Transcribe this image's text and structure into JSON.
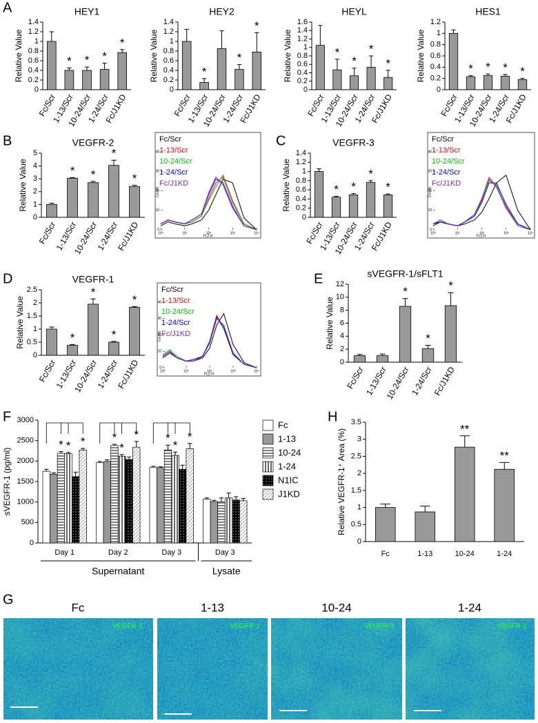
{
  "panel_labels": [
    "A",
    "B",
    "C",
    "D",
    "E",
    "F",
    "G",
    "H"
  ],
  "chart_data": [
    {
      "type": "bar",
      "title": "HEY1",
      "ylabel": "Relative Value",
      "categories": [
        "Fc/Scr",
        "1-13/Scr",
        "10-24/Scr",
        "1-24/Scr",
        "Fc/J1KD"
      ],
      "values": [
        1,
        0.4,
        0.4,
        0.42,
        0.77
      ],
      "errors": [
        0.2,
        0.05,
        0.07,
        0.13,
        0.06
      ],
      "significance": [
        null,
        "*",
        "*",
        "*",
        "*"
      ],
      "color": "#999999",
      "ylim": [
        0,
        1.4
      ],
      "yticks": [
        0,
        0.2,
        0.4,
        0.6,
        0.8,
        1,
        1.2,
        1.4
      ]
    },
    {
      "type": "bar",
      "title": "HEY2",
      "ylabel": "Relative Value",
      "categories": [
        "Fc/Scr",
        "1-13/Scr",
        "10-24/Scr",
        "1-24/Scr",
        "Fc/J1KD"
      ],
      "values": [
        1,
        0.15,
        0.85,
        0.42,
        0.78
      ],
      "errors": [
        0.25,
        0.08,
        0.37,
        0.1,
        0.4
      ],
      "significance": [
        null,
        "*",
        null,
        "*",
        "*"
      ],
      "color": "#999999",
      "ylim": [
        0,
        1.4
      ],
      "yticks": [
        0,
        0.2,
        0.4,
        0.6,
        0.8,
        1,
        1.2,
        1.4
      ]
    },
    {
      "type": "bar",
      "title": "HEYL",
      "ylabel": "Relative Value",
      "categories": [
        "Fc/Scr",
        "1-13/Scr",
        "10-24/Scr",
        "1-24/Scr",
        "Fc/J1KD"
      ],
      "values": [
        1.05,
        0.47,
        0.33,
        0.53,
        0.29
      ],
      "errors": [
        0.47,
        0.25,
        0.18,
        0.27,
        0.17
      ],
      "significance": [
        null,
        "*",
        "*",
        "*",
        "*"
      ],
      "color": "#999999",
      "ylim": [
        0,
        1.6
      ],
      "yticks": [
        0,
        0.2,
        0.4,
        0.6,
        0.8,
        1,
        1.2,
        1.4,
        1.6
      ]
    },
    {
      "type": "bar",
      "title": "HES1",
      "ylabel": "Relative Value",
      "categories": [
        "Fc/Scr",
        "1-13/Scr",
        "10-24/Scr",
        "1-24/Scr",
        "Fc/J1KD"
      ],
      "values": [
        1,
        0.23,
        0.25,
        0.24,
        0.18
      ],
      "errors": [
        0.06,
        0.02,
        0.03,
        0.03,
        0.02
      ],
      "significance": [
        null,
        "*",
        "*",
        "*",
        "*"
      ],
      "color": "#999999",
      "ylim": [
        0,
        1.2
      ],
      "yticks": [
        0,
        0.2,
        0.4,
        0.6,
        0.8,
        1,
        1.2
      ]
    },
    {
      "type": "bar",
      "title": "VEGFR-2",
      "ylabel": "Relative Value",
      "categories": [
        "Fc/Scr",
        "1-13/Scr",
        "10-24/Scr",
        "1-24/Scr",
        "Fc/J1KD"
      ],
      "values": [
        1,
        3.05,
        2.7,
        4.05,
        2.4
      ],
      "errors": [
        0.1,
        0.05,
        0.1,
        0.4,
        0.1
      ],
      "significance": [
        null,
        "*",
        "*",
        "*",
        "*"
      ],
      "color": "#999999",
      "ylim": [
        0,
        5
      ],
      "yticks": [
        0,
        1,
        2,
        3,
        4,
        5
      ]
    },
    {
      "type": "flow-histogram",
      "xlabel": "FL2-H",
      "ylabel": "Counts",
      "log_x": true,
      "xlim": [
        1,
        10000
      ],
      "xticks": [
        {
          "value": 1,
          "label": "10⁰"
        },
        {
          "value": 10,
          "label": "10¹"
        },
        {
          "value": 100,
          "label": "10²"
        },
        {
          "value": 1000,
          "label": "10³"
        },
        {
          "value": 10000,
          "label": "10⁴"
        }
      ],
      "ylim": [
        0,
        40
      ],
      "yticks": [
        0,
        10,
        20,
        30,
        40
      ],
      "x": [
        1,
        2,
        4,
        10,
        20,
        50,
        100,
        200,
        400,
        1000,
        3000,
        10000
      ],
      "series": [
        {
          "name": "Fc/Scr",
          "color": "#000000",
          "values": [
            2,
            4,
            3,
            2,
            3,
            5,
            10,
            18,
            26,
            24,
            6,
            0
          ]
        },
        {
          "name": "1-13/Scr",
          "color": "#ff0000",
          "values": [
            3,
            5,
            4,
            3,
            4,
            7,
            16,
            24,
            27,
            14,
            3,
            0
          ]
        },
        {
          "name": "10-24/Scr",
          "color": "#00c000",
          "values": [
            3,
            5,
            4,
            3,
            4,
            7,
            15,
            22,
            28,
            15,
            3,
            0
          ]
        },
        {
          "name": "1-24/Scr",
          "color": "#0000cc",
          "values": [
            3,
            5,
            4,
            3,
            5,
            8,
            18,
            26,
            24,
            12,
            2,
            0
          ]
        },
        {
          "name": "Fc/J1KD",
          "color": "#7a2ccc",
          "values": [
            3,
            5,
            4,
            3,
            5,
            8,
            19,
            27,
            23,
            11,
            2,
            0
          ]
        }
      ]
    },
    {
      "type": "bar",
      "title": "VEGFR-3",
      "ylabel": "Relative Value",
      "categories": [
        "Fc/Scr",
        "1-13/Scr",
        "10-24/Scr",
        "1-24/Scr",
        "Fc/J1KD"
      ],
      "values": [
        1,
        0.44,
        0.49,
        0.76,
        0.49
      ],
      "errors": [
        0.06,
        0.02,
        0.03,
        0.04,
        0.02
      ],
      "significance": [
        null,
        "*",
        "*",
        "*",
        "*"
      ],
      "color": "#999999",
      "ylim": [
        0,
        1.4
      ],
      "yticks": [
        0,
        0.2,
        0.4,
        0.6,
        0.8,
        1,
        1.2,
        1.4
      ]
    },
    {
      "type": "flow-histogram",
      "xlabel": "FL2-H",
      "ylabel": "Counts",
      "log_x": true,
      "xlim": [
        1,
        10000
      ],
      "xticks": [
        {
          "value": 1,
          "label": "10⁰"
        },
        {
          "value": 10,
          "label": "10¹"
        },
        {
          "value": 100,
          "label": "10²"
        },
        {
          "value": 1000,
          "label": "10³"
        },
        {
          "value": 10000,
          "label": "10⁴"
        }
      ],
      "ylim": [
        0,
        40
      ],
      "yticks": [
        0,
        10,
        20,
        30,
        40
      ],
      "x": [
        1,
        2,
        4,
        10,
        20,
        50,
        100,
        200,
        400,
        1000,
        3000,
        10000
      ],
      "series": [
        {
          "name": "Fc/Scr",
          "color": "#000000",
          "values": [
            2,
            4,
            3,
            2,
            3,
            5,
            9,
            16,
            24,
            28,
            10,
            0
          ]
        },
        {
          "name": "1-13/Scr",
          "color": "#ff0000",
          "values": [
            3,
            4,
            3,
            2,
            4,
            7,
            15,
            26,
            22,
            12,
            3,
            0
          ]
        },
        {
          "name": "10-24/Scr",
          "color": "#00c000",
          "values": [
            3,
            5,
            3,
            2,
            4,
            7,
            16,
            25,
            23,
            11,
            3,
            0
          ]
        },
        {
          "name": "1-24/Scr",
          "color": "#0000cc",
          "values": [
            3,
            4,
            3,
            2,
            4,
            7,
            14,
            24,
            24,
            13,
            3,
            0
          ]
        },
        {
          "name": "Fc/J1KD",
          "color": "#7a2ccc",
          "values": [
            3,
            5,
            3,
            2,
            4,
            8,
            16,
            27,
            22,
            11,
            2,
            0
          ]
        }
      ]
    },
    {
      "type": "bar",
      "title": "VEGFR-1",
      "ylabel": "Relative Value",
      "categories": [
        "Fc/Scr",
        "1-13/Scr",
        "10-24/Scr",
        "1-24/Scr",
        "Fc/J1KD"
      ],
      "values": [
        1,
        0.38,
        1.95,
        0.5,
        1.83
      ],
      "errors": [
        0.08,
        0.03,
        0.2,
        0.03,
        0.03
      ],
      "significance": [
        null,
        "*",
        "*",
        "*",
        "*"
      ],
      "color": "#999999",
      "ylim": [
        0,
        2.5
      ],
      "yticks": [
        0,
        0.5,
        1,
        1.5,
        2,
        2.5
      ]
    },
    {
      "type": "flow-histogram",
      "xlabel": "FL2-H",
      "ylabel": "Counts",
      "log_x": true,
      "xlim": [
        1,
        10000
      ],
      "xticks": [
        {
          "value": 1,
          "label": "10⁰"
        },
        {
          "value": 10,
          "label": "10¹"
        },
        {
          "value": 100,
          "label": "10²"
        },
        {
          "value": 1000,
          "label": "10³"
        },
        {
          "value": 10000,
          "label": "10⁴"
        }
      ],
      "ylim": [
        0,
        40
      ],
      "yticks": [
        0,
        10,
        20,
        30,
        40
      ],
      "x": [
        1,
        2,
        4,
        10,
        20,
        50,
        100,
        200,
        400,
        1000,
        3000,
        10000
      ],
      "series": [
        {
          "name": "Fc/Scr",
          "color": "#000000",
          "values": [
            6,
            9,
            6,
            4,
            4,
            6,
            12,
            26,
            33,
            14,
            3,
            0
          ]
        },
        {
          "name": "1-13/Scr",
          "color": "#ff0000",
          "values": [
            7,
            10,
            6,
            4,
            4,
            7,
            16,
            32,
            24,
            8,
            2,
            0
          ]
        },
        {
          "name": "10-24/Scr",
          "color": "#00c000",
          "values": [
            8,
            11,
            7,
            4,
            4,
            7,
            15,
            30,
            25,
            9,
            2,
            0
          ]
        },
        {
          "name": "1-24/Scr",
          "color": "#0000cc",
          "values": [
            7,
            10,
            6,
            4,
            5,
            7,
            16,
            31,
            24,
            8,
            2,
            0
          ]
        },
        {
          "name": "Fc/J1KD",
          "color": "#7a2ccc",
          "values": [
            7,
            10,
            6,
            4,
            4,
            7,
            15,
            30,
            26,
            9,
            2,
            0
          ]
        }
      ]
    },
    {
      "type": "bar",
      "title": "sVEGFR-1/sFLT1",
      "ylabel": "Relative Value",
      "categories": [
        "Fc/Scr",
        "1-13/Scr",
        "10-24/Scr",
        "1-24/Scr",
        "Fc/J1KD"
      ],
      "values": [
        1,
        1,
        8.6,
        2.1,
        8.7
      ],
      "errors": [
        0.2,
        0.25,
        1.2,
        0.5,
        2
      ],
      "significance": [
        null,
        null,
        "*",
        "*",
        "*"
      ],
      "color": "#999999",
      "ylim": [
        0,
        12
      ],
      "yticks": [
        0,
        2,
        4,
        6,
        8,
        10,
        12
      ]
    },
    {
      "type": "grouped-bar",
      "ylabel": "sVEGFR-1 (pg/ml)",
      "categories": [
        "Day 1",
        "Day 2",
        "Day 3",
        "Day 3"
      ],
      "group_labels": [
        "Supernatant",
        "Lysate"
      ],
      "ylim": [
        0,
        3000
      ],
      "yticks": [
        0,
        500,
        1000,
        1500,
        2000,
        2500,
        3000
      ],
      "series": [
        {
          "name": "Fc",
          "color": "#ffffff",
          "values": [
            1750,
            1960,
            1850,
            1070
          ],
          "errors": [
            50,
            30,
            20,
            30
          ],
          "significance": [
            null,
            null,
            null,
            null
          ]
        },
        {
          "name": "1-13",
          "color": "#999999",
          "values": [
            1680,
            1990,
            1840,
            1010
          ],
          "errors": [
            30,
            40,
            20,
            30
          ],
          "significance": [
            null,
            null,
            null,
            null
          ]
        },
        {
          "name": "10-24",
          "color": "#ffffff",
          "pattern": "horizontal",
          "values": [
            2190,
            2380,
            2270,
            1000
          ],
          "errors": [
            40,
            30,
            120,
            100
          ],
          "significance": [
            "*",
            "*",
            "*",
            null
          ]
        },
        {
          "name": "1-24",
          "color": "#ffffff",
          "pattern": "vertical",
          "values": [
            2180,
            2120,
            2140,
            1100
          ],
          "errors": [
            30,
            40,
            80,
            120
          ],
          "significance": [
            "*",
            "*",
            "*",
            null
          ]
        },
        {
          "name": "N1IC",
          "color": "#000000",
          "pattern": "dots",
          "values": [
            1620,
            2040,
            1800,
            1050
          ],
          "errors": [
            110,
            60,
            100,
            80
          ],
          "significance": [
            null,
            null,
            null,
            null
          ]
        },
        {
          "name": "J1KD",
          "color": "#ffffff",
          "pattern": "diagonal",
          "values": [
            2270,
            2340,
            2300,
            1030
          ],
          "errors": [
            40,
            140,
            130,
            60
          ],
          "significance": [
            "*",
            "*",
            "*",
            null
          ]
        }
      ]
    },
    {
      "type": "bar",
      "ylabel": "Relative VEGFR-1⁺ Area (%)",
      "categories": [
        "Fc",
        "1-13",
        "10-24",
        "1-24"
      ],
      "values": [
        1,
        0.87,
        2.77,
        2.12
      ],
      "errors": [
        0.1,
        0.17,
        0.33,
        0.2
      ],
      "significance": [
        null,
        null,
        "**",
        "**"
      ],
      "color": "#999999",
      "ylim": [
        0,
        3.5
      ],
      "yticks": [
        0,
        0.5,
        1,
        1.5,
        2,
        2.5,
        3,
        3.5
      ],
      "horizontal_labels": true
    }
  ],
  "images": {
    "titles": [
      "Fc",
      "1-13",
      "10-24",
      "1-24"
    ],
    "stain": "VEGFR-1"
  }
}
